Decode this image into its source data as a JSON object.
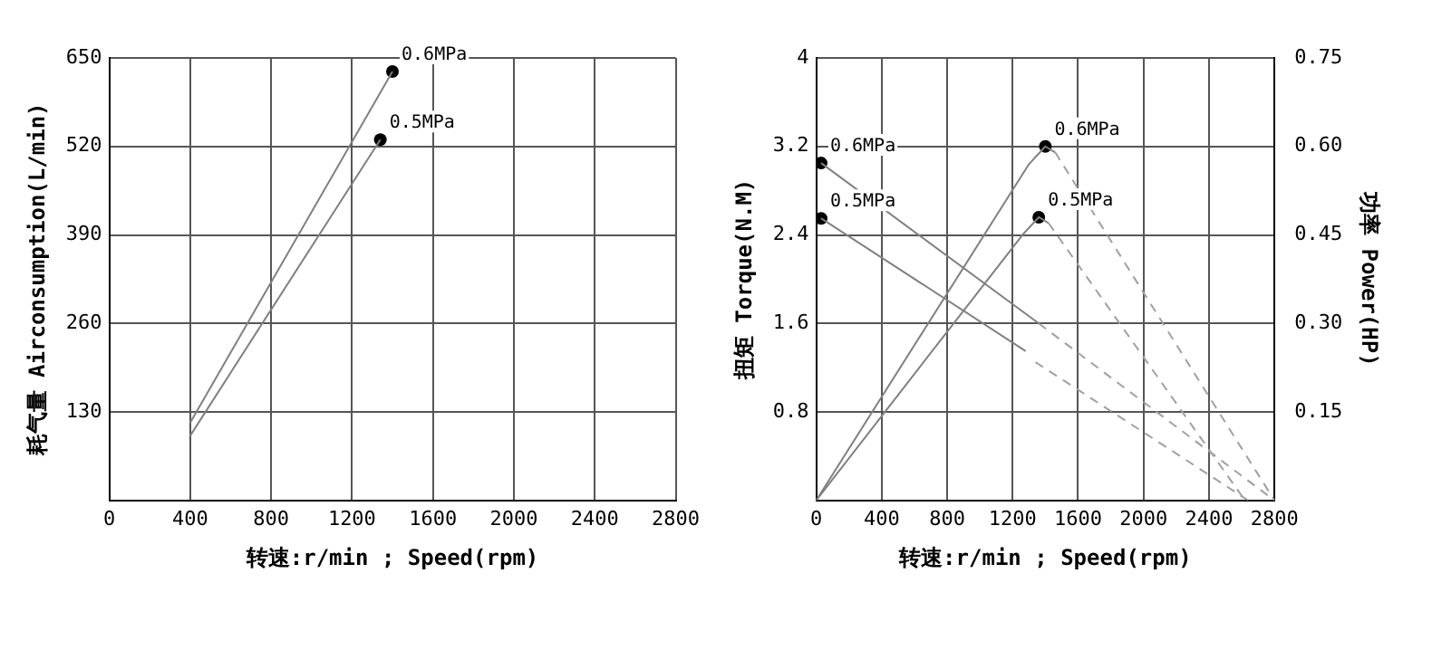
{
  "chart_data": [
    {
      "type": "line",
      "ylabel": "耗气量 Airconsumption(L/min)",
      "xlabel": "转速:r/min ; Speed(rpm)",
      "xlim": [
        0,
        2800
      ],
      "xticks": [
        0,
        400,
        800,
        1200,
        1600,
        2000,
        2400,
        2800
      ],
      "ylim": [
        0,
        650
      ],
      "yticks": [
        130,
        260,
        390,
        520,
        650
      ],
      "grid": true,
      "legend": false,
      "series": [
        {
          "type": "line",
          "color": "#808080",
          "line_style": "solid",
          "x": [
            400,
            1400
          ],
          "values": [
            114,
            630
          ]
        },
        {
          "type": "line",
          "color": "#808080",
          "line_style": "solid",
          "x": [
            400,
            1340
          ],
          "values": [
            95,
            530
          ]
        },
        {
          "type": "scatter",
          "name": "0.6MPa",
          "color": "#000000",
          "marker": "circle",
          "x": [
            1400
          ],
          "values": [
            630
          ]
        },
        {
          "type": "scatter",
          "name": "0.5MPa",
          "color": "#000000",
          "marker": "circle",
          "x": [
            1340
          ],
          "values": [
            530
          ]
        }
      ]
    },
    {
      "type": "line",
      "ylabel": "扭矩 Torque(N.M)",
      "y2label": "功率 Power(HP)",
      "xlabel": "转速:r/min ; Speed(rpm)",
      "xlim": [
        0,
        2800
      ],
      "xticks": [
        0,
        400,
        800,
        1200,
        1600,
        2000,
        2400,
        2800
      ],
      "ylim": [
        0,
        4
      ],
      "yticks": [
        0.8,
        1.6,
        2.4,
        3.2,
        4
      ],
      "y2lim": [
        0,
        0.75
      ],
      "y2ticks": [
        {
          "value": 0.15,
          "label": "0.15"
        },
        {
          "value": 0.3,
          "label": "0.30"
        },
        {
          "value": 0.45,
          "label": "0.45"
        },
        {
          "value": 0.6,
          "label": "0.60"
        },
        {
          "value": 0.75,
          "label": "0.75"
        }
      ],
      "grid": true,
      "legend": false,
      "series": [
        {
          "type": "line",
          "color": "#808080",
          "line_style": "solid",
          "x": [
            30,
            1360
          ],
          "values": [
            3.05,
            1.6
          ]
        },
        {
          "type": "line",
          "color": "#a0a0a0",
          "line_style": "dashed",
          "x": [
            1360,
            2800
          ],
          "values": [
            1.6,
            0
          ]
        },
        {
          "type": "line",
          "color": "#808080",
          "line_style": "solid",
          "x": [
            30,
            1280
          ],
          "values": [
            2.55,
            1.35
          ]
        },
        {
          "type": "line",
          "color": "#a0a0a0",
          "line_style": "dashed",
          "x": [
            1340,
            2640
          ],
          "values": [
            1.25,
            0
          ]
        },
        {
          "type": "line",
          "color": "#808080",
          "line_style": "solid",
          "axis": "y2",
          "x": [
            0,
            1300,
            1400,
            1460
          ],
          "values": [
            0,
            0.57,
            0.6,
            0.59
          ]
        },
        {
          "type": "line",
          "color": "#a0a0a0",
          "line_style": "dashed",
          "axis": "y2",
          "x": [
            1460,
            2800
          ],
          "values": [
            0.59,
            0
          ]
        },
        {
          "type": "line",
          "color": "#808080",
          "line_style": "solid",
          "axis": "y2",
          "x": [
            0,
            1260,
            1360,
            1420
          ],
          "values": [
            0,
            0.45,
            0.48,
            0.47
          ]
        },
        {
          "type": "line",
          "color": "#a0a0a0",
          "line_style": "dashed",
          "axis": "y2",
          "x": [
            1420,
            2620
          ],
          "values": [
            0.47,
            0
          ]
        },
        {
          "type": "scatter",
          "name": "0.6MPa",
          "color": "#000000",
          "marker": "circle",
          "x": [
            30
          ],
          "values": [
            3.05
          ]
        },
        {
          "type": "scatter",
          "name": "0.5MPa",
          "color": "#000000",
          "marker": "circle",
          "x": [
            30
          ],
          "values": [
            2.55
          ]
        },
        {
          "type": "scatter",
          "name": "0.6MPa",
          "color": "#000000",
          "marker": "circle",
          "axis": "y2",
          "x": [
            1400
          ],
          "values": [
            0.6
          ]
        },
        {
          "type": "scatter",
          "name": "0.5MPa",
          "color": "#000000",
          "marker": "circle",
          "axis": "y2",
          "x": [
            1360
          ],
          "values": [
            0.48
          ]
        }
      ]
    }
  ]
}
